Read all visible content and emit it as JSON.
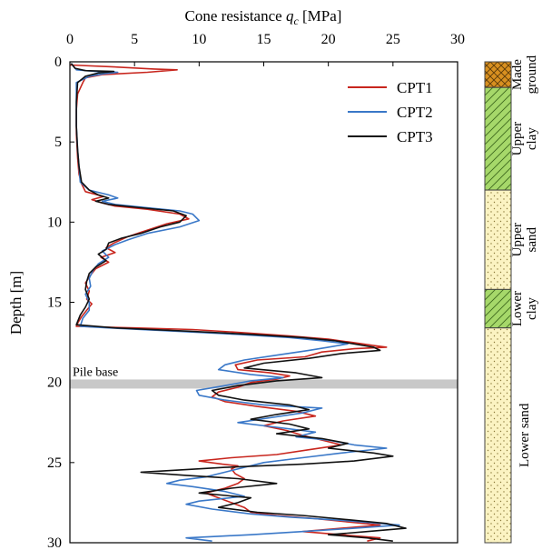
{
  "chart_data": {
    "type": "line",
    "xlabel_prefix": "Cone resistance ",
    "xlabel_symbol": "q",
    "xlabel_sub": "c",
    "xlabel_unit": " [MPa]",
    "ylabel": "Depth [m]",
    "xlim": [
      0,
      30
    ],
    "ylim": [
      0,
      30
    ],
    "x_axis_position": "top",
    "y_inverted": true,
    "grid": false,
    "legend_position": "top-right",
    "x_ticks": [
      "0",
      "5",
      "10",
      "15",
      "20",
      "25",
      "30"
    ],
    "y_ticks": [
      "0",
      "5",
      "10",
      "15",
      "20",
      "25",
      "30"
    ],
    "annotation": {
      "text": "Pile base",
      "depth": 20.1,
      "band_color": "#c8c8c8"
    },
    "series": [
      {
        "name": "CPT1",
        "color": "#c8261e",
        "points": [
          [
            0.0,
            0.2
          ],
          [
            3.0,
            0.3
          ],
          [
            6.5,
            0.45
          ],
          [
            8.3,
            0.5
          ],
          [
            6.0,
            0.65
          ],
          [
            2.5,
            0.8
          ],
          [
            1.2,
            1.0
          ],
          [
            1.0,
            1.3
          ],
          [
            0.6,
            2.0
          ],
          [
            0.5,
            3.0
          ],
          [
            0.5,
            4.5
          ],
          [
            0.6,
            6.0
          ],
          [
            0.7,
            7.0
          ],
          [
            0.9,
            7.6
          ],
          [
            1.2,
            8.1
          ],
          [
            2.6,
            8.4
          ],
          [
            1.7,
            8.6
          ],
          [
            2.5,
            8.8
          ],
          [
            3.5,
            9.0
          ],
          [
            6.0,
            9.2
          ],
          [
            8.5,
            9.5
          ],
          [
            9.2,
            9.8
          ],
          [
            7.5,
            10.1
          ],
          [
            6.0,
            10.5
          ],
          [
            4.5,
            10.9
          ],
          [
            3.4,
            11.3
          ],
          [
            2.8,
            11.6
          ],
          [
            3.5,
            11.9
          ],
          [
            2.4,
            12.2
          ],
          [
            3.0,
            12.5
          ],
          [
            2.0,
            12.9
          ],
          [
            1.6,
            13.3
          ],
          [
            1.2,
            13.8
          ],
          [
            1.5,
            14.3
          ],
          [
            1.3,
            14.8
          ],
          [
            1.7,
            15.1
          ],
          [
            1.3,
            15.5
          ],
          [
            0.9,
            15.9
          ],
          [
            0.6,
            16.3
          ],
          [
            0.5,
            16.5
          ],
          [
            5.0,
            16.6
          ],
          [
            9.5,
            16.7
          ],
          [
            13.5,
            16.9
          ],
          [
            17.0,
            17.1
          ],
          [
            20.0,
            17.3
          ],
          [
            21.8,
            17.5
          ],
          [
            23.5,
            17.7
          ],
          [
            24.5,
            17.8
          ],
          [
            22.0,
            17.9
          ],
          [
            19.5,
            18.1
          ],
          [
            18.2,
            18.4
          ],
          [
            14.5,
            18.6
          ],
          [
            12.8,
            18.9
          ],
          [
            13.0,
            19.2
          ],
          [
            15.5,
            19.4
          ],
          [
            17.0,
            19.6
          ],
          [
            16.0,
            19.8
          ],
          [
            14.0,
            20.0
          ],
          [
            13.0,
            20.3
          ],
          [
            11.5,
            20.6
          ],
          [
            11.0,
            20.9
          ],
          [
            12.0,
            21.2
          ],
          [
            14.5,
            21.5
          ],
          [
            17.5,
            21.8
          ],
          [
            19.0,
            22.1
          ],
          [
            16.5,
            22.4
          ],
          [
            15.0,
            22.7
          ],
          [
            16.8,
            23.0
          ],
          [
            18.0,
            23.3
          ],
          [
            19.5,
            23.6
          ],
          [
            21.0,
            23.9
          ],
          [
            18.5,
            24.2
          ],
          [
            16.0,
            24.5
          ],
          [
            12.5,
            24.7
          ],
          [
            10.0,
            24.9
          ],
          [
            11.8,
            25.1
          ],
          [
            13.0,
            25.2
          ],
          [
            12.5,
            25.4
          ],
          [
            12.8,
            25.7
          ],
          [
            13.5,
            26.0
          ],
          [
            13.0,
            26.3
          ],
          [
            12.0,
            26.6
          ],
          [
            10.5,
            26.9
          ],
          [
            11.5,
            27.2
          ],
          [
            12.5,
            27.5
          ],
          [
            13.5,
            27.8
          ],
          [
            14.0,
            28.1
          ],
          [
            16.0,
            28.3
          ],
          [
            19.0,
            28.5
          ],
          [
            21.5,
            28.7
          ],
          [
            24.0,
            28.9
          ],
          [
            21.0,
            29.1
          ],
          [
            18.0,
            29.3
          ],
          [
            21.0,
            29.5
          ],
          [
            24.0,
            29.7
          ],
          [
            23.0,
            29.9
          ]
        ]
      },
      {
        "name": "CPT2",
        "color": "#3a78c8",
        "points": [
          [
            0.1,
            0.1
          ],
          [
            0.5,
            0.5
          ],
          [
            2.0,
            0.6
          ],
          [
            3.7,
            0.65
          ],
          [
            2.6,
            0.75
          ],
          [
            1.5,
            0.9
          ],
          [
            0.5,
            1.3
          ],
          [
            0.5,
            2.5
          ],
          [
            0.5,
            4.0
          ],
          [
            0.6,
            5.5
          ],
          [
            0.7,
            6.5
          ],
          [
            0.8,
            7.5
          ],
          [
            1.5,
            8.0
          ],
          [
            3.0,
            8.3
          ],
          [
            3.7,
            8.5
          ],
          [
            2.5,
            8.7
          ],
          [
            3.5,
            8.9
          ],
          [
            6.0,
            9.1
          ],
          [
            8.5,
            9.3
          ],
          [
            9.5,
            9.5
          ],
          [
            10.0,
            9.9
          ],
          [
            8.5,
            10.3
          ],
          [
            6.0,
            10.7
          ],
          [
            4.5,
            11.1
          ],
          [
            3.5,
            11.4
          ],
          [
            2.5,
            11.8
          ],
          [
            3.0,
            12.2
          ],
          [
            2.2,
            12.6
          ],
          [
            1.8,
            13.0
          ],
          [
            1.5,
            13.5
          ],
          [
            1.6,
            14.0
          ],
          [
            1.2,
            14.5
          ],
          [
            1.5,
            15.0
          ],
          [
            1.5,
            15.5
          ],
          [
            1.0,
            16.0
          ],
          [
            0.8,
            16.5
          ],
          [
            3.0,
            16.6
          ],
          [
            8.0,
            16.8
          ],
          [
            13.0,
            17.0
          ],
          [
            17.0,
            17.2
          ],
          [
            19.5,
            17.4
          ],
          [
            21.5,
            17.6
          ],
          [
            20.0,
            17.8
          ],
          [
            18.5,
            18.0
          ],
          [
            16.0,
            18.3
          ],
          [
            13.5,
            18.6
          ],
          [
            12.0,
            18.9
          ],
          [
            11.5,
            19.2
          ],
          [
            14.0,
            19.5
          ],
          [
            16.5,
            19.7
          ],
          [
            14.0,
            19.9
          ],
          [
            12.0,
            20.2
          ],
          [
            9.8,
            20.5
          ],
          [
            10.0,
            20.8
          ],
          [
            12.0,
            21.1
          ],
          [
            15.0,
            21.4
          ],
          [
            19.5,
            21.6
          ],
          [
            18.0,
            21.9
          ],
          [
            15.5,
            22.2
          ],
          [
            13.0,
            22.5
          ],
          [
            16.0,
            22.8
          ],
          [
            19.0,
            23.1
          ],
          [
            17.5,
            23.4
          ],
          [
            20.0,
            23.6
          ],
          [
            22.0,
            23.9
          ],
          [
            24.5,
            24.1
          ],
          [
            21.0,
            24.4
          ],
          [
            18.0,
            24.7
          ],
          [
            15.0,
            25.0
          ],
          [
            13.5,
            25.3
          ],
          [
            12.0,
            25.6
          ],
          [
            10.5,
            25.9
          ],
          [
            8.5,
            26.1
          ],
          [
            7.5,
            26.3
          ],
          [
            9.5,
            26.5
          ],
          [
            12.0,
            26.8
          ],
          [
            13.5,
            27.1
          ],
          [
            10.0,
            27.4
          ],
          [
            9.0,
            27.6
          ],
          [
            11.0,
            27.9
          ],
          [
            14.0,
            28.2
          ],
          [
            17.0,
            28.4
          ],
          [
            21.0,
            28.6
          ],
          [
            25.5,
            28.9
          ],
          [
            22.0,
            29.1
          ],
          [
            18.0,
            29.3
          ],
          [
            14.0,
            29.5
          ],
          [
            11.5,
            29.6
          ],
          [
            9.0,
            29.7
          ],
          [
            11.0,
            29.9
          ]
        ]
      },
      {
        "name": "CPT3",
        "color": "#111111",
        "points": [
          [
            0.1,
            0.1
          ],
          [
            0.4,
            0.4
          ],
          [
            1.2,
            0.55
          ],
          [
            3.4,
            0.6
          ],
          [
            2.2,
            0.7
          ],
          [
            1.2,
            0.9
          ],
          [
            0.6,
            1.3
          ],
          [
            0.5,
            2.5
          ],
          [
            0.5,
            4.0
          ],
          [
            0.6,
            5.5
          ],
          [
            0.7,
            6.5
          ],
          [
            0.9,
            7.5
          ],
          [
            1.5,
            8.0
          ],
          [
            2.2,
            8.3
          ],
          [
            3.0,
            8.5
          ],
          [
            2.0,
            8.7
          ],
          [
            3.0,
            8.9
          ],
          [
            5.5,
            9.1
          ],
          [
            8.0,
            9.3
          ],
          [
            9.0,
            9.6
          ],
          [
            8.5,
            10.0
          ],
          [
            7.0,
            10.3
          ],
          [
            5.5,
            10.7
          ],
          [
            4.0,
            11.0
          ],
          [
            3.0,
            11.3
          ],
          [
            2.8,
            11.7
          ],
          [
            2.2,
            12.0
          ],
          [
            2.8,
            12.4
          ],
          [
            2.0,
            12.8
          ],
          [
            1.5,
            13.2
          ],
          [
            1.3,
            13.7
          ],
          [
            1.2,
            14.2
          ],
          [
            1.5,
            14.8
          ],
          [
            1.2,
            15.3
          ],
          [
            0.8,
            15.8
          ],
          [
            0.5,
            16.4
          ],
          [
            3.5,
            16.6
          ],
          [
            9.0,
            16.8
          ],
          [
            14.0,
            17.0
          ],
          [
            18.0,
            17.2
          ],
          [
            20.5,
            17.4
          ],
          [
            22.0,
            17.6
          ],
          [
            23.5,
            17.8
          ],
          [
            24.0,
            18.0
          ],
          [
            21.0,
            18.2
          ],
          [
            18.5,
            18.5
          ],
          [
            15.0,
            18.8
          ],
          [
            13.5,
            19.1
          ],
          [
            17.5,
            19.4
          ],
          [
            19.5,
            19.7
          ],
          [
            16.0,
            19.9
          ],
          [
            13.0,
            20.2
          ],
          [
            11.0,
            20.5
          ],
          [
            11.5,
            20.8
          ],
          [
            13.5,
            21.1
          ],
          [
            17.0,
            21.4
          ],
          [
            18.5,
            21.7
          ],
          [
            16.0,
            22.0
          ],
          [
            14.0,
            22.3
          ],
          [
            17.0,
            22.6
          ],
          [
            18.5,
            22.9
          ],
          [
            16.0,
            23.2
          ],
          [
            19.5,
            23.5
          ],
          [
            21.5,
            23.8
          ],
          [
            20.0,
            24.1
          ],
          [
            23.5,
            24.4
          ],
          [
            25.0,
            24.6
          ],
          [
            22.0,
            24.9
          ],
          [
            18.0,
            25.1
          ],
          [
            12.0,
            25.3
          ],
          [
            5.5,
            25.6
          ],
          [
            9.0,
            25.8
          ],
          [
            13.0,
            26.0
          ],
          [
            16.0,
            26.3
          ],
          [
            12.5,
            26.6
          ],
          [
            10.0,
            26.9
          ],
          [
            14.0,
            27.2
          ],
          [
            13.0,
            27.5
          ],
          [
            11.5,
            27.8
          ],
          [
            14.5,
            28.1
          ],
          [
            18.0,
            28.3
          ],
          [
            22.0,
            28.6
          ],
          [
            24.5,
            28.8
          ],
          [
            26.0,
            29.1
          ],
          [
            23.0,
            29.3
          ],
          [
            20.0,
            29.5
          ],
          [
            23.0,
            29.7
          ],
          [
            25.0,
            29.9
          ]
        ]
      }
    ]
  },
  "soil_column": [
    {
      "label_lines": [
        "Made",
        "ground"
      ],
      "top": 0,
      "bottom": 1.6,
      "fill": "#d89020",
      "pattern": "crosshatch"
    },
    {
      "label_lines": [
        "Upper",
        "clay"
      ],
      "top": 1.6,
      "bottom": 8.0,
      "fill": "#a6d86a",
      "pattern": "diagonal"
    },
    {
      "label_lines": [
        "Upper",
        "sand"
      ],
      "top": 8.0,
      "bottom": 14.2,
      "fill": "#fbf3c2",
      "pattern": "dots"
    },
    {
      "label_lines": [
        "Lower",
        "clay"
      ],
      "top": 14.2,
      "bottom": 16.6,
      "fill": "#a6d86a",
      "pattern": "diagonal"
    },
    {
      "label_lines": [
        "Lower sand"
      ],
      "top": 16.6,
      "bottom": 30,
      "fill": "#fbf3c2",
      "pattern": "dots"
    }
  ]
}
